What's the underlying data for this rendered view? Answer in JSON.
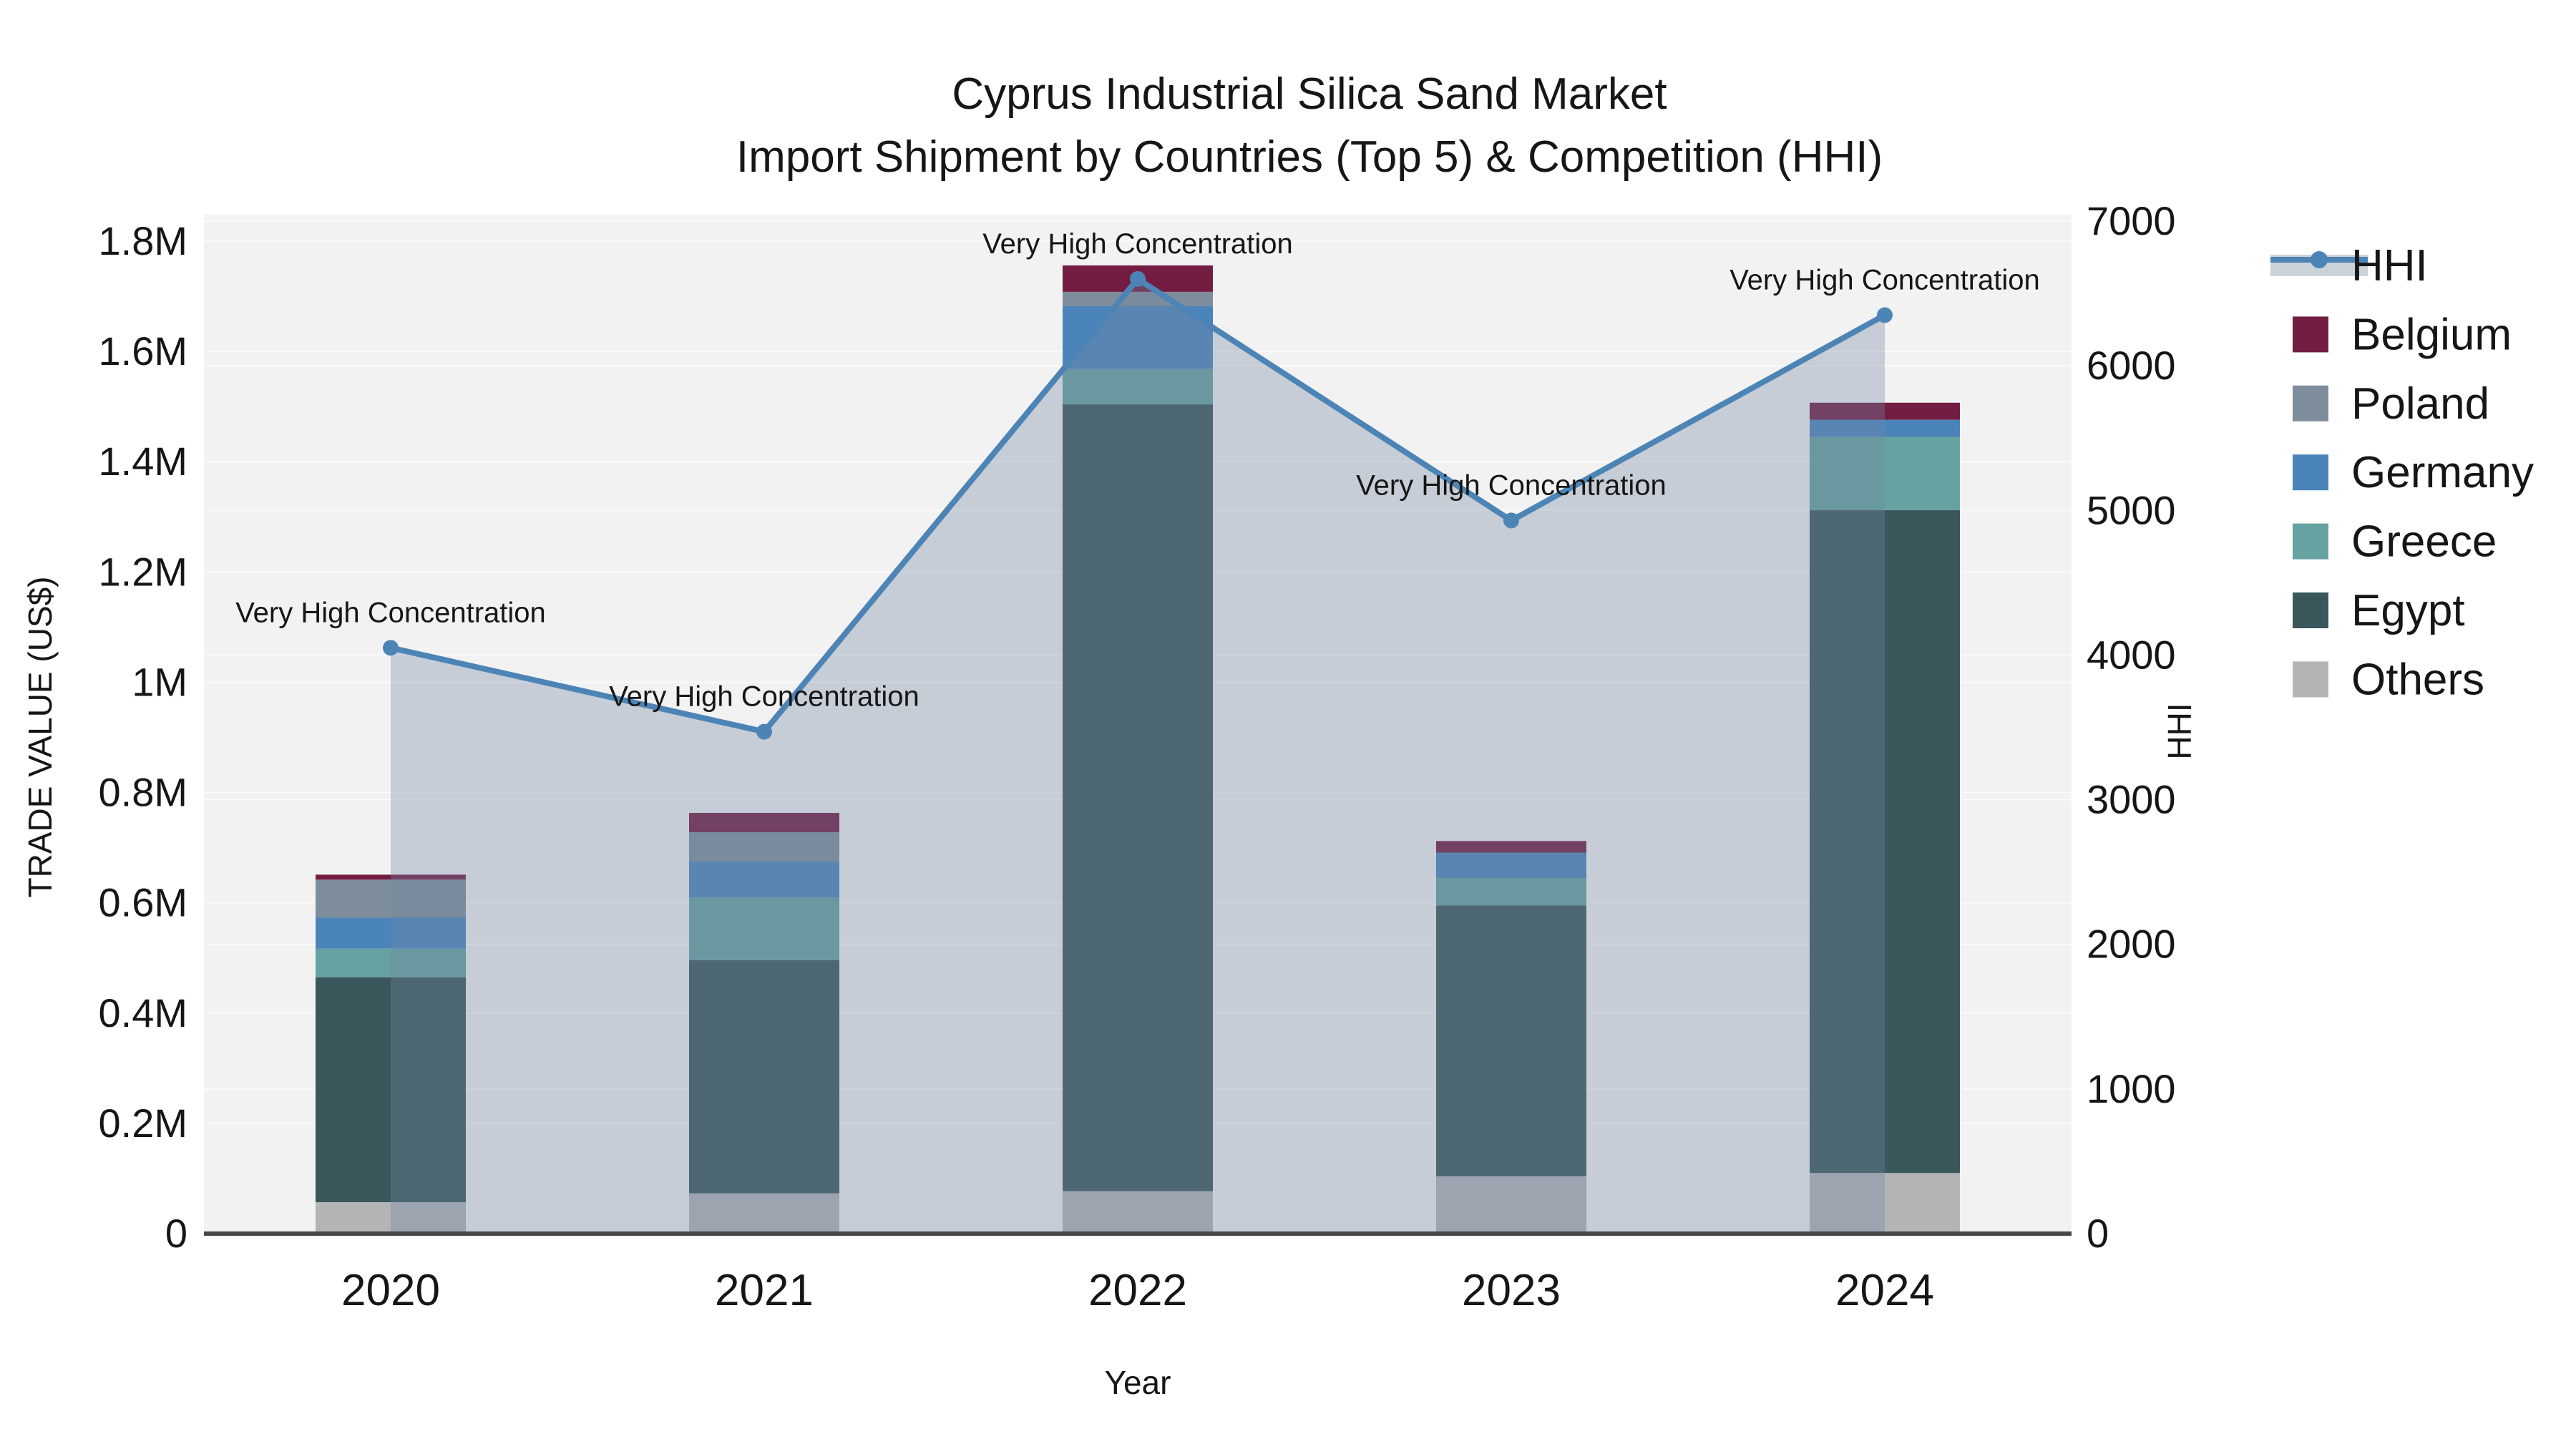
{
  "title": {
    "line1": "Cyprus Industrial Silica Sand Market",
    "line2": "Import Shipment by Countries (Top 5) & Competition (HHI)"
  },
  "axes": {
    "y_left": {
      "title": "TRADE VALUE (US$)",
      "tick_labels": [
        "0",
        "0.2M",
        "0.4M",
        "0.6M",
        "0.8M",
        "1M",
        "1.2M",
        "1.4M",
        "1.6M",
        "1.8M"
      ],
      "tick_values": [
        0,
        200000,
        400000,
        600000,
        800000,
        1000000,
        1200000,
        1400000,
        1600000,
        1800000
      ]
    },
    "y_right": {
      "title": "HHI",
      "tick_labels": [
        "0",
        "1000",
        "2000",
        "3000",
        "4000",
        "5000",
        "6000",
        "7000"
      ],
      "tick_values": [
        0,
        1000,
        2000,
        3000,
        4000,
        5000,
        6000,
        7000
      ]
    },
    "x": {
      "title": "Year",
      "tick_labels": [
        "2020",
        "2021",
        "2022",
        "2023",
        "2024"
      ]
    }
  },
  "legend": {
    "items": [
      {
        "label": "HHI",
        "type": "line",
        "color": "#4d84b6"
      },
      {
        "label": "Belgium",
        "type": "square",
        "color": "#731d43"
      },
      {
        "label": "Poland",
        "type": "square",
        "color": "#7d8d9c"
      },
      {
        "label": "Germany",
        "type": "square",
        "color": "#4b84ba"
      },
      {
        "label": "Greece",
        "type": "square",
        "color": "#66a2a1"
      },
      {
        "label": "Egypt",
        "type": "square",
        "color": "#3a575c"
      },
      {
        "label": "Others",
        "type": "square",
        "color": "#b2b4b6"
      }
    ]
  },
  "colors": {
    "hhi_line": "#4d84b6",
    "hhi_area_fill": "rgba(115,135,160,0.34)",
    "plot_background": "#f2f2f3",
    "gridline": "#fafafa",
    "x_axis_line": "#474747"
  },
  "chart_data": {
    "type": "combo: stacked bar (left axis) + line with area fill (right axis)",
    "x": [
      2020,
      2021,
      2022,
      2023,
      2024
    ],
    "categories": [
      "2020",
      "2021",
      "2022",
      "2023",
      "2024"
    ],
    "bar_series": [
      {
        "name": "Belgium",
        "color": "#731d43",
        "values": [
          9000,
          35000,
          48000,
          21000,
          31000
        ]
      },
      {
        "name": "Poland",
        "color": "#7d8d9c",
        "values": [
          69000,
          53000,
          26000,
          0,
          0
        ]
      },
      {
        "name": "Germany",
        "color": "#4b84ba",
        "values": [
          56000,
          65000,
          114000,
          46000,
          31000
        ]
      },
      {
        "name": "Greece",
        "color": "#66a2a1",
        "values": [
          52000,
          114000,
          64000,
          50000,
          133000
        ]
      },
      {
        "name": "Egypt",
        "color": "#3a575c",
        "values": [
          408000,
          423000,
          1427000,
          491000,
          1202000
        ]
      },
      {
        "name": "Others",
        "color": "#b2b4b6",
        "values": [
          57000,
          73000,
          77000,
          104000,
          110000
        ]
      }
    ],
    "stack_order_bottom_to_top": [
      "Others",
      "Egypt",
      "Greece",
      "Germany",
      "Poland",
      "Belgium"
    ],
    "line_series": {
      "name": "HHI",
      "values": [
        4050,
        3470,
        6600,
        4930,
        6350
      ]
    },
    "bar_totals_usd": [
      651000,
      763000,
      1756000,
      712000,
      1507000
    ],
    "annotations": [
      "Very High Concentration",
      "Very High Concentration",
      "Very High Concentration",
      "Very High Concentration",
      "Very High Concentration"
    ],
    "xlabel": "Year",
    "ylabel": "TRADE VALUE (US$)",
    "y2label": "HHI",
    "ylim": [
      0,
      1800000
    ],
    "y2lim": [
      0,
      7000
    ],
    "grid": true,
    "legend_position": "right"
  }
}
